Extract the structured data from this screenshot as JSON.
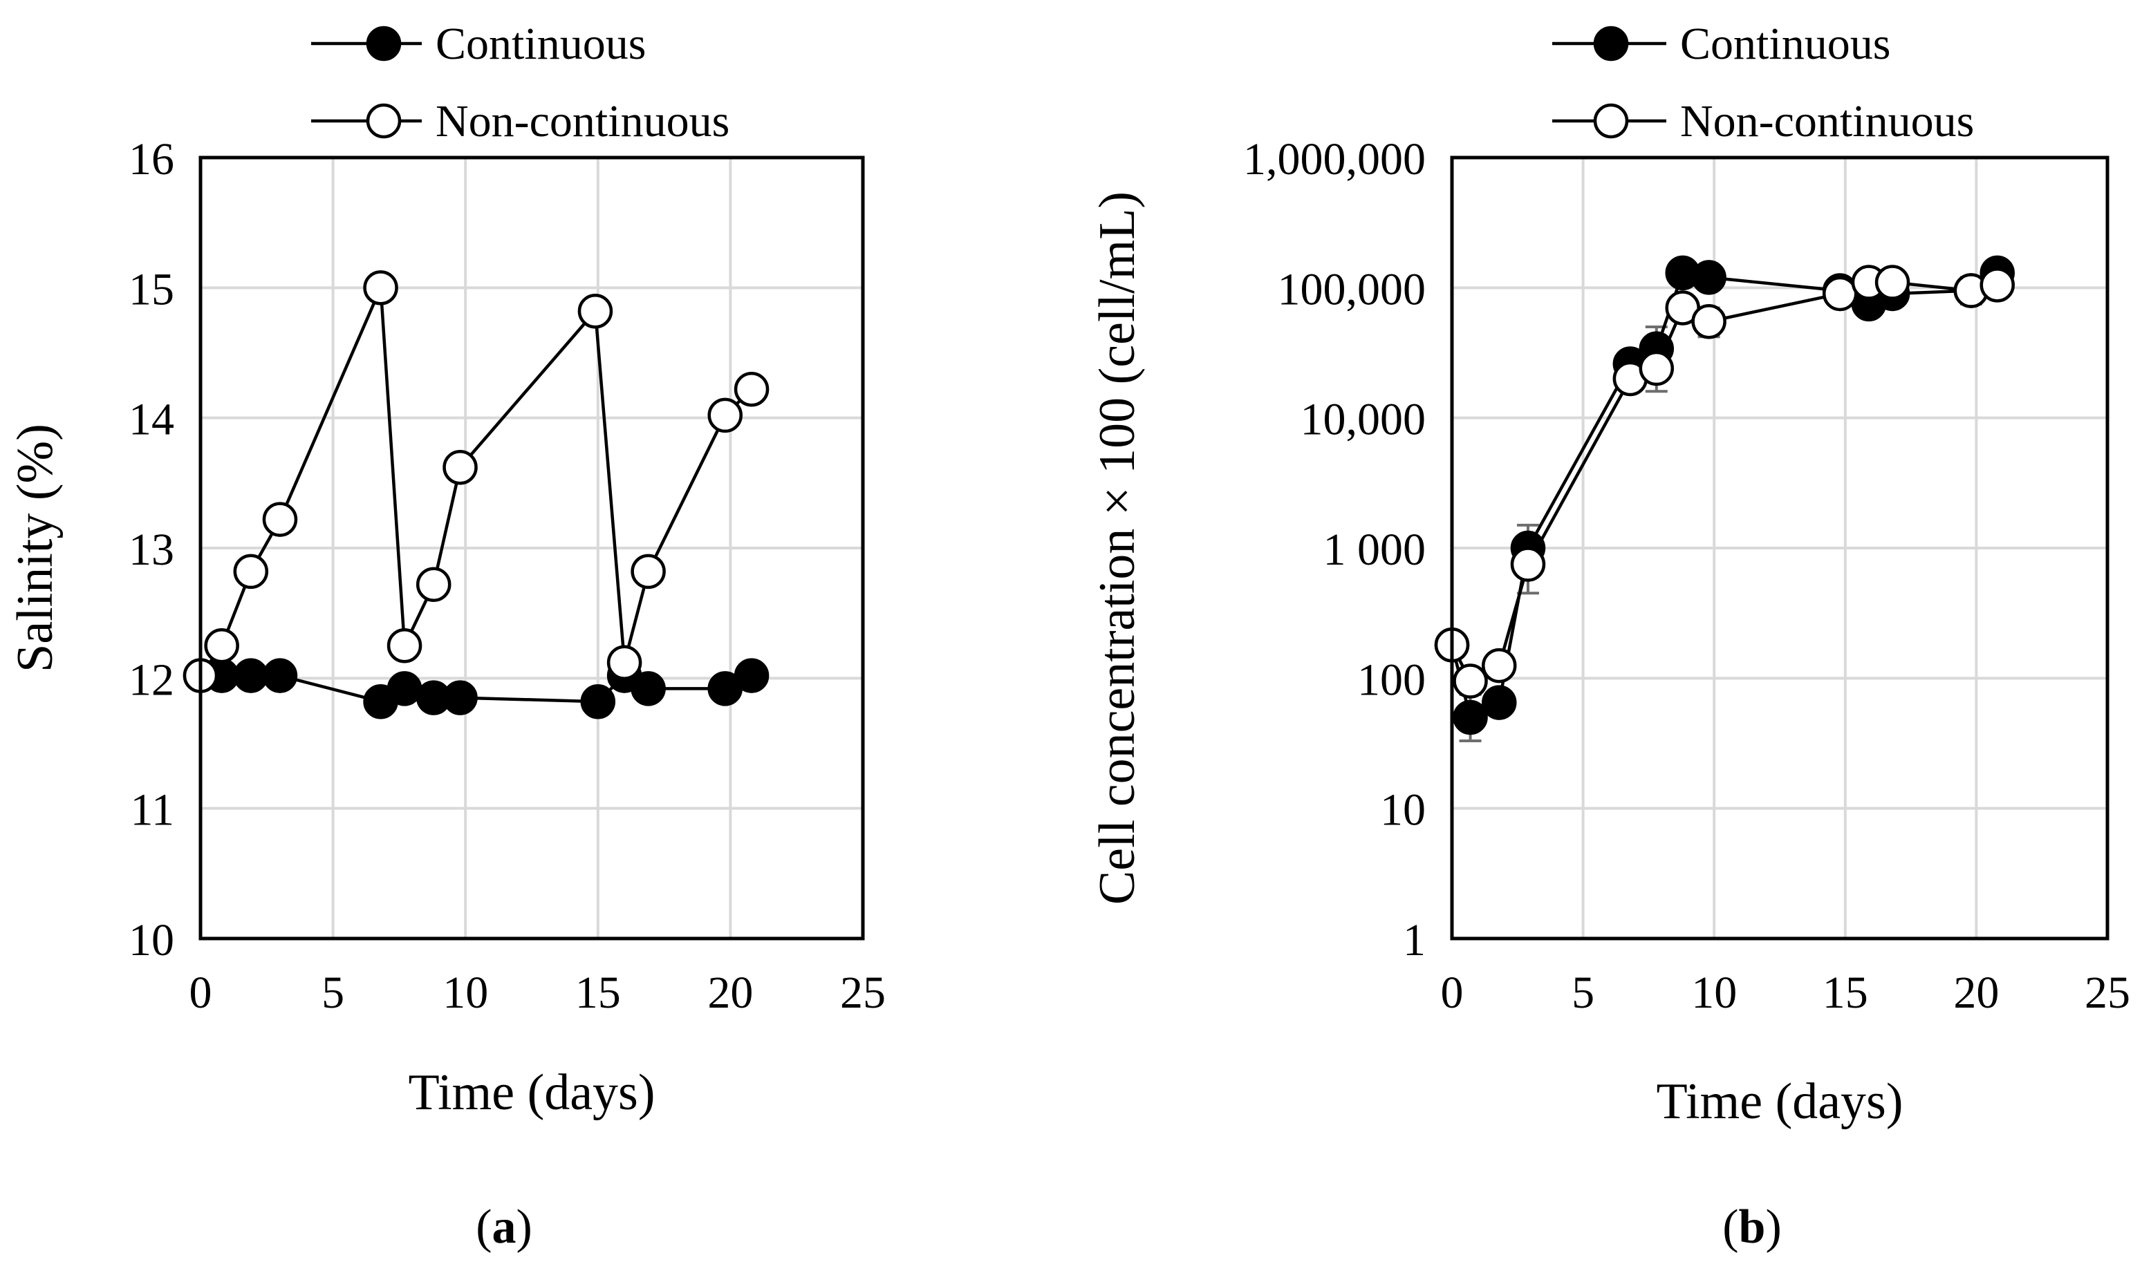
{
  "chart_data": [
    {
      "id": "a",
      "type": "line",
      "panel_label": "a",
      "xlabel": "Time (days)",
      "ylabel": "Salinity (%)",
      "xlim": [
        0,
        25
      ],
      "ylim": [
        10,
        16
      ],
      "xscale": "linear",
      "yscale": "linear",
      "xticks": [
        0,
        5,
        10,
        15,
        20,
        25
      ],
      "yticks": [
        10,
        11,
        12,
        13,
        14,
        15,
        16
      ],
      "xtick_labels": [
        "0",
        "5",
        "10",
        "15",
        "20",
        "25"
      ],
      "ytick_labels": [
        "10",
        "11",
        "12",
        "13",
        "14",
        "15",
        "16"
      ],
      "grid": true,
      "legend_position": "top",
      "series": [
        {
          "name": "Continuous",
          "marker": "filled-circle",
          "segments": [
            {
              "x": [
                0,
                0.8,
                1.9,
                3,
                6.8,
                7.7,
                8.8,
                9.8,
                15,
                16,
                16.9,
                19.8,
                20.8
              ],
              "y": [
                12.02,
                12.02,
                12.02,
                12.02,
                11.82,
                11.92,
                11.85,
                11.85,
                11.82,
                12.02,
                11.92,
                11.92,
                12.02
              ]
            }
          ]
        },
        {
          "name": "Non-continuous",
          "marker": "open-circle",
          "segments": [
            {
              "x": [
                0,
                0.8,
                1.9,
                3,
                6.8,
                7.7,
                8.8,
                9.8,
                14.9,
                16,
                16.9,
                19.8,
                20.8
              ],
              "y": [
                12.02,
                12.25,
                12.82,
                13.22,
                15.0,
                12.25,
                12.72,
                13.62,
                14.82,
                12.12,
                12.82,
                14.02,
                14.22
              ]
            }
          ]
        }
      ]
    },
    {
      "id": "b",
      "type": "line",
      "panel_label": "b",
      "xlabel": "Time (days)",
      "ylabel": "Cell concentration × 100 (cell/mL)",
      "xlim": [
        0,
        25
      ],
      "ylim": [
        1,
        1000000
      ],
      "xscale": "linear",
      "yscale": "log",
      "xticks": [
        0,
        5,
        10,
        15,
        20,
        25
      ],
      "yticks": [
        1,
        10,
        100,
        1000,
        10000,
        100000,
        1000000
      ],
      "xtick_labels": [
        "0",
        "5",
        "10",
        "15",
        "20",
        "25"
      ],
      "ytick_labels": [
        "1",
        "10",
        "100",
        "1 000",
        "10,000",
        "100,000",
        "1,000,000"
      ],
      "grid": true,
      "legend_position": "top",
      "series": [
        {
          "name": "Continuous",
          "marker": "filled-circle",
          "segments": [
            {
              "x": [
                0,
                0.7,
                1.8,
                2.9,
                6.8,
                7.8,
                8.8,
                9.8,
                14.8,
                15.9,
                16.8,
                19.8,
                20.8
              ],
              "y": [
                180,
                50,
                65,
                1000,
                26000,
                34000,
                130000,
                120000,
                95000,
                75000,
                90000,
                95000,
                130000
              ]
            }
          ],
          "errors": {
            "x": [
              0.7,
              2.9,
              7.8,
              19.8
            ],
            "low": [
              33,
              600,
              16000,
              75000
            ],
            "high": [
              75,
              1500,
              50000,
              120000
            ]
          }
        },
        {
          "name": "Non-continuous",
          "marker": "open-circle",
          "segments": [
            {
              "x": [
                0,
                0.7,
                1.8,
                2.9,
                6.8,
                7.8,
                8.8,
                9.8,
                14.8,
                15.9,
                16.8,
                19.8,
                20.8
              ],
              "y": [
                180,
                95,
                125,
                750,
                20000,
                24000,
                70000,
                55000,
                90000,
                110000,
                110000,
                95000,
                105000
              ]
            }
          ],
          "errors": {
            "x": [
              2.9,
              9.8,
              19.8
            ],
            "low": [
              450,
              42000,
              80000
            ],
            "high": [
              1000,
              70000,
              110000
            ]
          }
        }
      ]
    }
  ]
}
